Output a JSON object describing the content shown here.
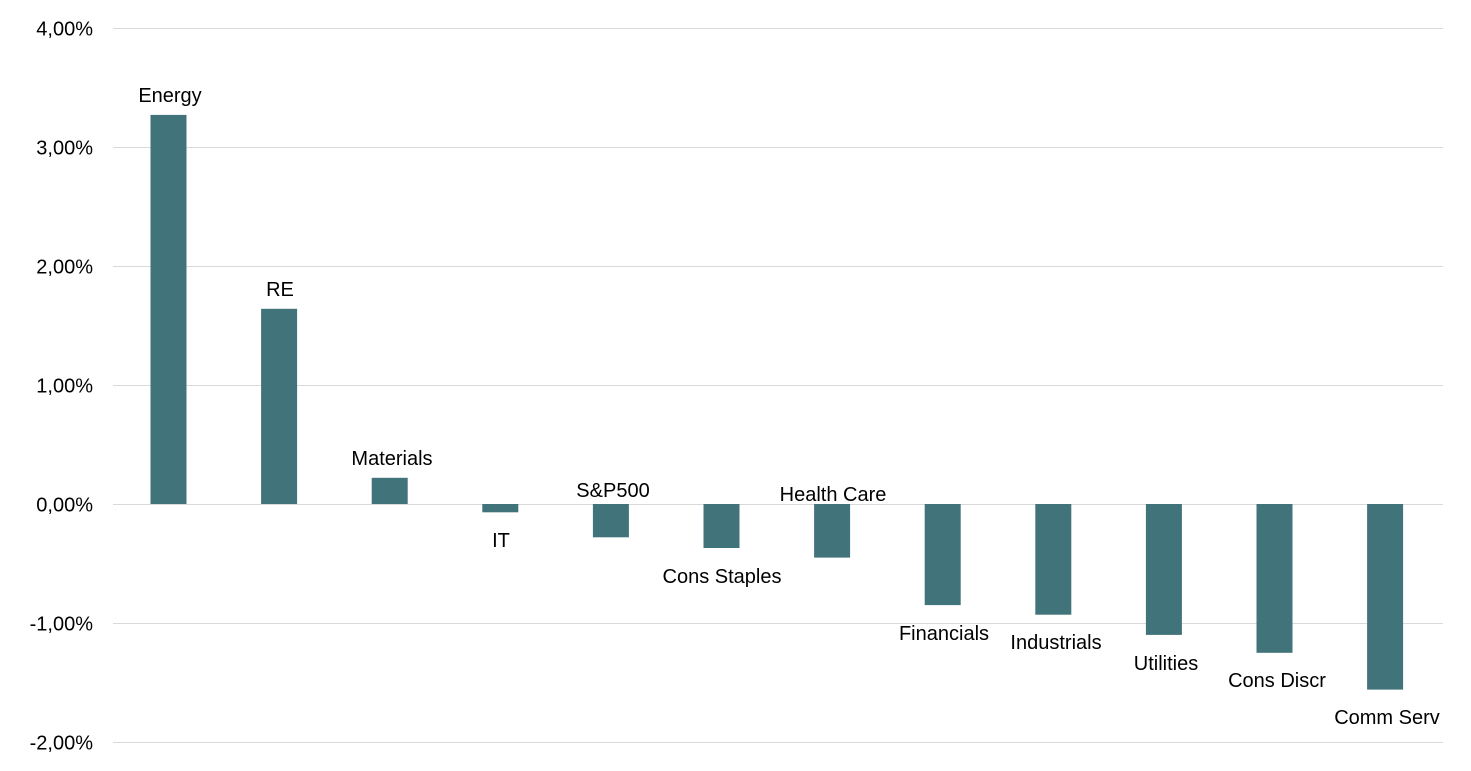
{
  "chart_data": {
    "type": "bar",
    "title": "",
    "xlabel": "",
    "ylabel": "",
    "ylim": [
      -2,
      4
    ],
    "yticks": [
      4,
      3,
      2,
      1,
      0,
      -1,
      -2
    ],
    "ytick_labels": [
      "4,00%",
      "3,00%",
      "2,00%",
      "1,00%",
      "0,00%",
      "-1,00%",
      "-2,00%"
    ],
    "grid": true,
    "legend": "none",
    "bar_color": "#41737a",
    "categories": [
      "Energy",
      "RE",
      "Materials",
      "IT",
      "S&P500",
      "Cons Staples",
      "Health Care",
      "Financials",
      "Industrials",
      "Utilities",
      "Cons Discr",
      "Comm Serv"
    ],
    "values": [
      3.27,
      1.64,
      0.22,
      -0.07,
      -0.28,
      -0.37,
      -0.45,
      -0.85,
      -0.93,
      -1.1,
      -1.25,
      -1.56
    ]
  }
}
